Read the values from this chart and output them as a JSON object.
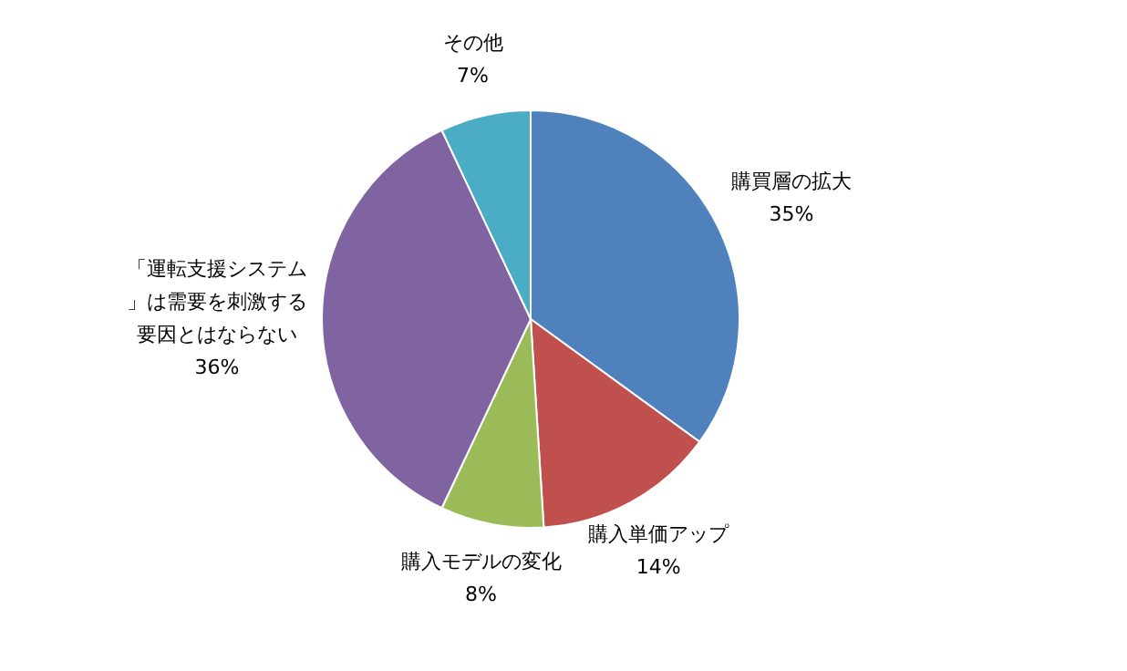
{
  "chart_data": {
    "type": "pie",
    "categories": [
      "購買層の拡大",
      "購入単価アップ",
      "購入モデルの変化",
      "「運転支援システム」は需要を刺激する要因とはならない",
      "その他"
    ],
    "values": [
      35,
      14,
      8,
      36,
      7
    ],
    "colors": [
      "#4f81bd",
      "#c0504d",
      "#9bbb59",
      "#8064a2",
      "#4bacc6"
    ],
    "value_labels": [
      "35%",
      "14%",
      "8%",
      "36%",
      "7%"
    ],
    "legend": false
  }
}
